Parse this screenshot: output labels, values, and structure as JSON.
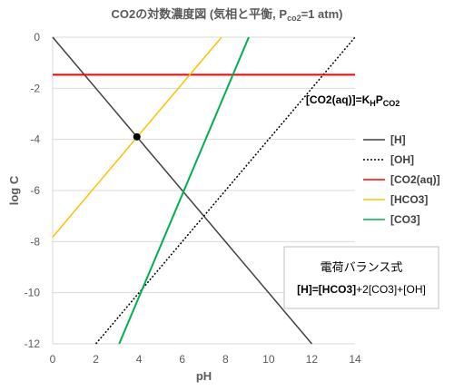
{
  "chart_data": {
    "type": "line",
    "title_parts": [
      "CO2の対数濃度図 (気相と平衡, P",
      "co2",
      "=1 atm)"
    ],
    "xlabel": "pH",
    "ylabel": "log C",
    "xlim": [
      0,
      14
    ],
    "ylim": [
      -12,
      0
    ],
    "xticks": [
      0,
      2,
      4,
      6,
      8,
      10,
      12,
      14
    ],
    "yticks": [
      0,
      -2,
      -4,
      -6,
      -8,
      -10,
      -12
    ],
    "grid": "horizontal",
    "legend_position": "right",
    "series": [
      {
        "name": "[H]",
        "color": "#404040",
        "dash": "solid",
        "points": [
          [
            0,
            0
          ],
          [
            12,
            -12
          ]
        ]
      },
      {
        "name": "[OH]",
        "color": "#000000",
        "dash": "dotted",
        "points": [
          [
            2,
            -12
          ],
          [
            14,
            0
          ]
        ]
      },
      {
        "name": "[CO2(aq)]",
        "color": "#ff0000",
        "dash": "solid",
        "points": [
          [
            0,
            -1.47
          ],
          [
            14,
            -1.47
          ]
        ]
      },
      {
        "name": "[HCO3]",
        "color": "#ffc000",
        "dash": "solid",
        "points": [
          [
            0,
            -7.82
          ],
          [
            7.82,
            0
          ]
        ]
      },
      {
        "name": "[CO3]",
        "color": "#00b050",
        "dash": "solid",
        "points": [
          [
            3.08,
            -12
          ],
          [
            9.08,
            0
          ]
        ]
      }
    ],
    "marker": {
      "x": 3.9,
      "y": -3.9,
      "color": "#000000"
    },
    "annotation": {
      "parts": [
        "[CO2(aq)]=K",
        "H",
        "P",
        "CO2"
      ],
      "x": 13.9,
      "y": -2.6
    },
    "box": {
      "title": "電荷バランス式",
      "equation_bold": "[H]=[HCO3]",
      "equation_rest": "+2[CO3]+[OH]"
    }
  }
}
